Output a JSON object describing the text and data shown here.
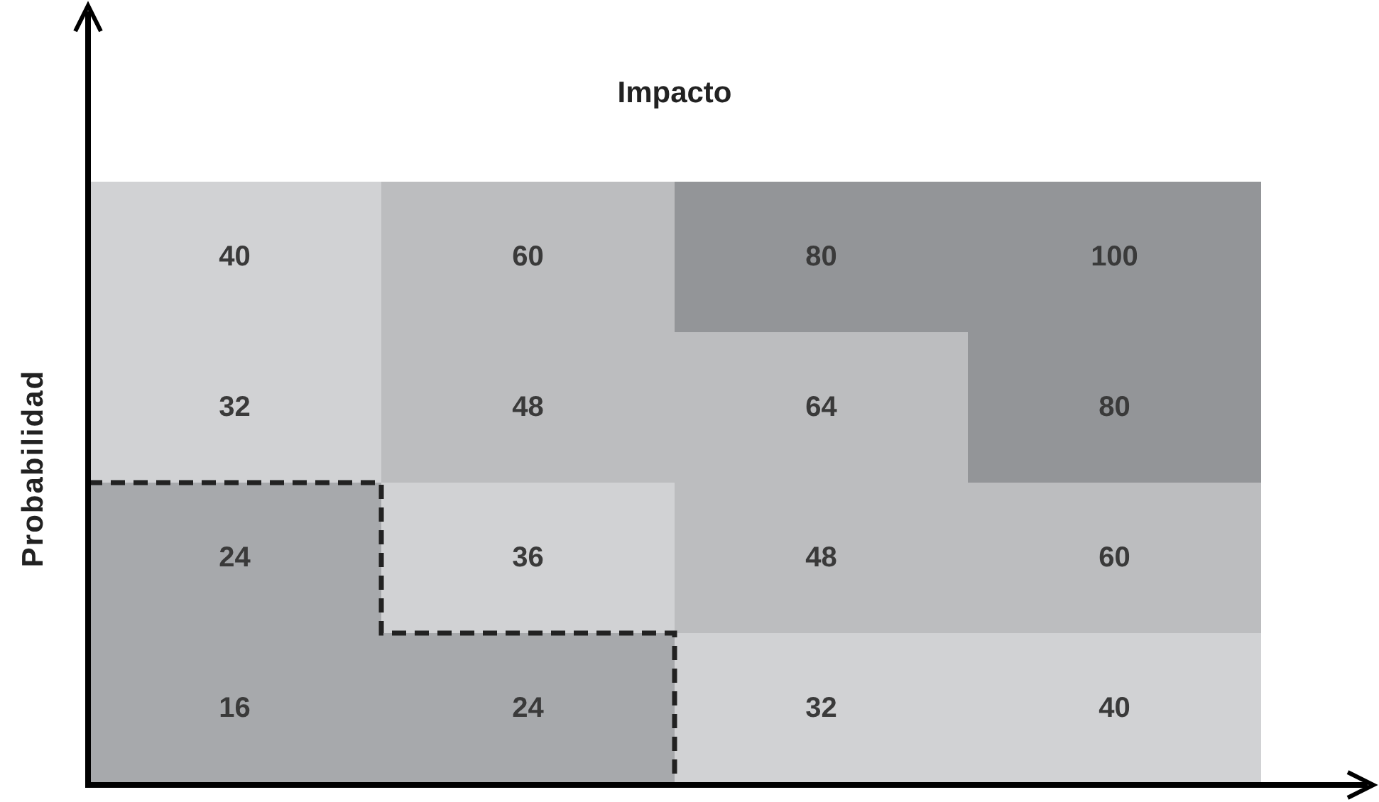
{
  "chart_data": {
    "type": "heatmap",
    "xlabel": "Impacto",
    "ylabel": "Probabilidad",
    "categories": [
      null,
      null,
      null,
      null
    ],
    "y_categories": [
      null,
      null,
      null,
      null
    ],
    "cells": [
      [
        40,
        60,
        80,
        100
      ],
      [
        32,
        48,
        64,
        80
      ],
      [
        24,
        36,
        48,
        60
      ],
      [
        16,
        24,
        32,
        40
      ]
    ],
    "colors": [
      [
        "#d1d2d4",
        "#bcbdbf",
        "#939598",
        "#939598"
      ],
      [
        "#d1d2d4",
        "#bcbdbf",
        "#bcbdbf",
        "#939598"
      ],
      [
        "#a7a9ac",
        "#d1d2d4",
        "#bcbdbf",
        "#bcbdbf"
      ],
      [
        "#a7a9ac",
        "#a7a9ac",
        "#d1d2d4",
        "#d1d2d4"
      ]
    ],
    "data_labels": true
  }
}
